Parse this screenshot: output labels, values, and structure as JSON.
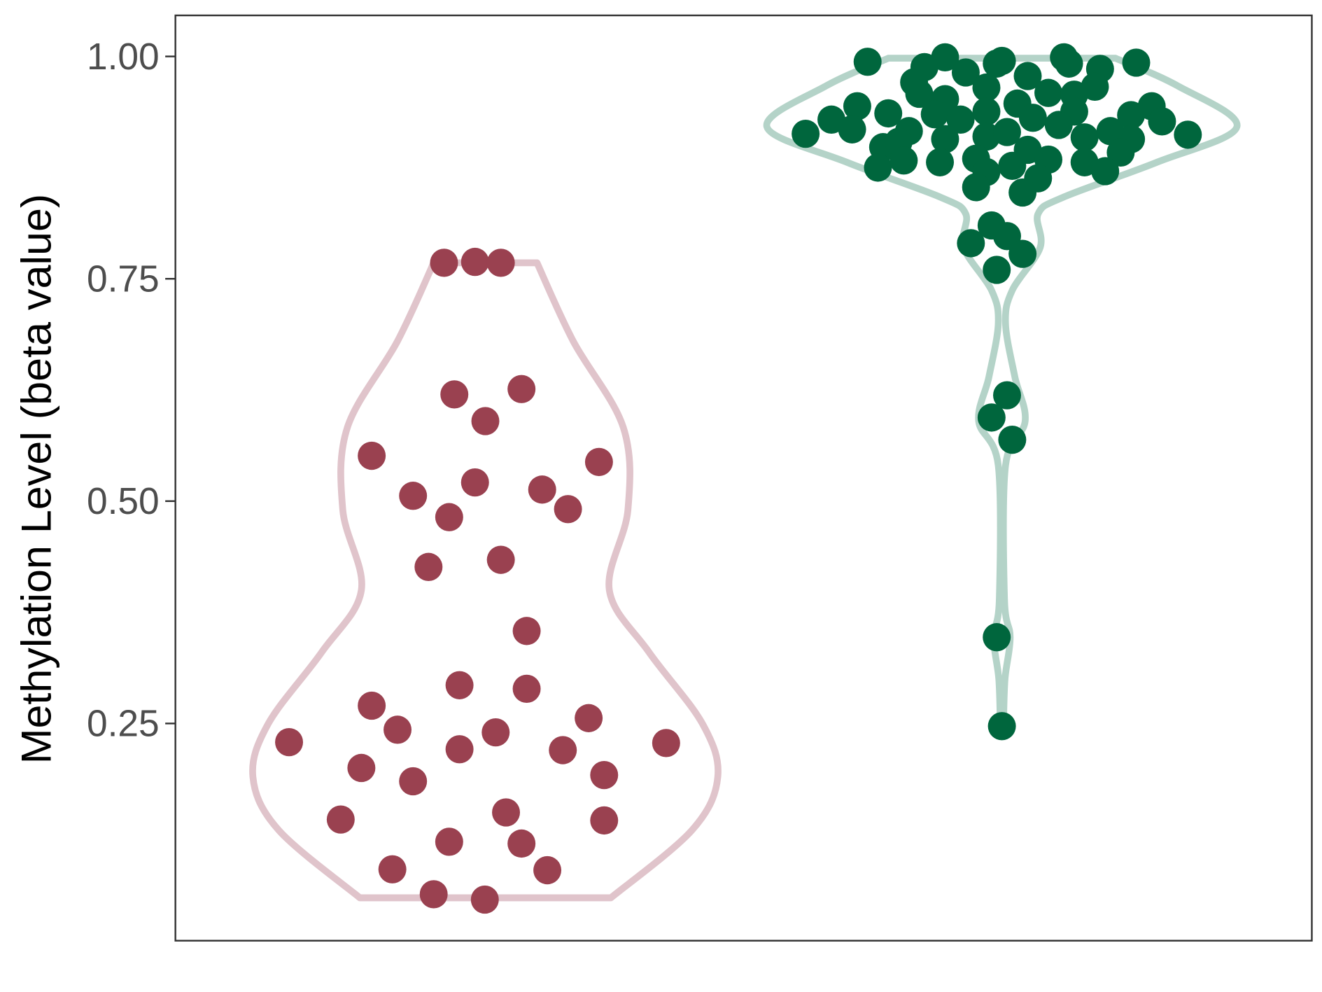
{
  "chart_data": {
    "type": "violin",
    "title": "",
    "xlabel": "",
    "ylabel": "Methylation Level (beta value)",
    "xlim": [
      0.4,
      2.6
    ],
    "ylim": [
      0.0,
      1.046
    ],
    "yticks": [
      0.25,
      0.5,
      0.75,
      1.0
    ],
    "ytick_labels": [
      "0.25",
      "0.50",
      "0.75",
      "1.00"
    ],
    "grid": false,
    "legend": "none",
    "groups": [
      {
        "position": 1,
        "point_color": "#9a4150",
        "violin_color": "#e0c4cb",
        "density_halfwidth": [
          [
            0.768,
            0.1
          ],
          [
            0.68,
            0.17
          ],
          [
            0.583,
            0.267
          ],
          [
            0.49,
            0.276
          ],
          [
            0.4,
            0.24
          ],
          [
            0.33,
            0.317
          ],
          [
            0.25,
            0.42
          ],
          [
            0.19,
            0.45
          ],
          [
            0.13,
            0.4
          ],
          [
            0.054,
            0.243
          ]
        ],
        "points": [
          [
            0.92,
            0.768
          ],
          [
            0.98,
            0.769
          ],
          [
            1.03,
            0.768
          ],
          [
            0.94,
            0.62
          ],
          [
            1.07,
            0.626
          ],
          [
            1.0,
            0.59
          ],
          [
            0.78,
            0.551
          ],
          [
            1.22,
            0.544
          ],
          [
            0.98,
            0.521
          ],
          [
            0.86,
            0.506
          ],
          [
            1.11,
            0.513
          ],
          [
            0.93,
            0.482
          ],
          [
            1.16,
            0.491
          ],
          [
            0.89,
            0.426
          ],
          [
            1.03,
            0.434
          ],
          [
            1.08,
            0.354
          ],
          [
            0.95,
            0.293
          ],
          [
            1.08,
            0.289
          ],
          [
            0.78,
            0.27
          ],
          [
            0.83,
            0.243
          ],
          [
            1.2,
            0.256
          ],
          [
            0.62,
            0.229
          ],
          [
            0.95,
            0.221
          ],
          [
            1.02,
            0.24
          ],
          [
            1.15,
            0.22
          ],
          [
            1.35,
            0.228
          ],
          [
            0.76,
            0.2
          ],
          [
            0.86,
            0.185
          ],
          [
            1.23,
            0.192
          ],
          [
            1.04,
            0.15
          ],
          [
            0.72,
            0.142
          ],
          [
            1.23,
            0.141
          ],
          [
            0.93,
            0.117
          ],
          [
            1.07,
            0.115
          ],
          [
            0.82,
            0.086
          ],
          [
            1.12,
            0.085
          ],
          [
            0.9,
            0.058
          ],
          [
            0.999,
            0.052
          ]
        ]
      },
      {
        "position": 2,
        "point_color": "#00663d",
        "violin_color": "#b4d3c8",
        "density_halfwidth": [
          [
            0.998,
            0.22
          ],
          [
            0.967,
            0.34
          ],
          [
            0.921,
            0.455
          ],
          [
            0.881,
            0.3
          ],
          [
            0.842,
            0.12
          ],
          [
            0.823,
            0.07
          ],
          [
            0.785,
            0.074
          ],
          [
            0.737,
            0.02
          ],
          [
            0.7,
            0.007
          ],
          [
            0.64,
            0.025
          ],
          [
            0.59,
            0.045
          ],
          [
            0.54,
            0.007
          ],
          [
            0.39,
            0.005
          ],
          [
            0.347,
            0.016
          ],
          [
            0.3,
            0.006
          ],
          [
            0.247,
            0.003
          ]
        ],
        "points": [
          [
            1.74,
            0.994
          ],
          [
            1.89,
            0.999
          ],
          [
            1.85,
            0.988
          ],
          [
            2.0,
            0.995
          ],
          [
            1.99,
            0.992
          ],
          [
            2.12,
            0.999
          ],
          [
            2.13,
            0.992
          ],
          [
            2.26,
            0.993
          ],
          [
            2.19,
            0.986
          ],
          [
            1.93,
            0.982
          ],
          [
            2.05,
            0.978
          ],
          [
            1.83,
            0.971
          ],
          [
            1.97,
            0.965
          ],
          [
            2.09,
            0.959
          ],
          [
            2.18,
            0.966
          ],
          [
            2.14,
            0.957
          ],
          [
            1.84,
            0.958
          ],
          [
            1.89,
            0.952
          ],
          [
            1.72,
            0.944
          ],
          [
            2.03,
            0.947
          ],
          [
            1.67,
            0.929
          ],
          [
            1.78,
            0.936
          ],
          [
            1.97,
            0.938
          ],
          [
            1.87,
            0.935
          ],
          [
            1.92,
            0.929
          ],
          [
            2.06,
            0.931
          ],
          [
            2.14,
            0.938
          ],
          [
            2.25,
            0.934
          ],
          [
            2.29,
            0.944
          ],
          [
            2.31,
            0.927
          ],
          [
            1.62,
            0.913
          ],
          [
            1.71,
            0.918
          ],
          [
            1.82,
            0.916
          ],
          [
            2.11,
            0.923
          ],
          [
            1.89,
            0.907
          ],
          [
            1.97,
            0.91
          ],
          [
            2.01,
            0.915
          ],
          [
            2.16,
            0.909
          ],
          [
            2.21,
            0.916
          ],
          [
            2.25,
            0.907
          ],
          [
            2.36,
            0.912
          ],
          [
            1.77,
            0.898
          ],
          [
            1.8,
            0.904
          ],
          [
            2.05,
            0.895
          ],
          [
            2.23,
            0.892
          ],
          [
            1.95,
            0.885
          ],
          [
            2.09,
            0.884
          ],
          [
            2.16,
            0.881
          ],
          [
            1.76,
            0.875
          ],
          [
            1.81,
            0.883
          ],
          [
            1.88,
            0.881
          ],
          [
            1.97,
            0.87
          ],
          [
            2.02,
            0.877
          ],
          [
            2.07,
            0.863
          ],
          [
            2.2,
            0.871
          ],
          [
            1.95,
            0.853
          ],
          [
            2.04,
            0.847
          ],
          [
            1.98,
            0.81
          ],
          [
            2.01,
            0.798
          ],
          [
            1.94,
            0.79
          ],
          [
            2.04,
            0.778
          ],
          [
            1.99,
            0.76
          ],
          [
            2.01,
            0.619
          ],
          [
            1.98,
            0.594
          ],
          [
            2.02,
            0.569
          ],
          [
            1.99,
            0.347
          ],
          [
            2.0,
            0.247
          ]
        ]
      }
    ]
  }
}
